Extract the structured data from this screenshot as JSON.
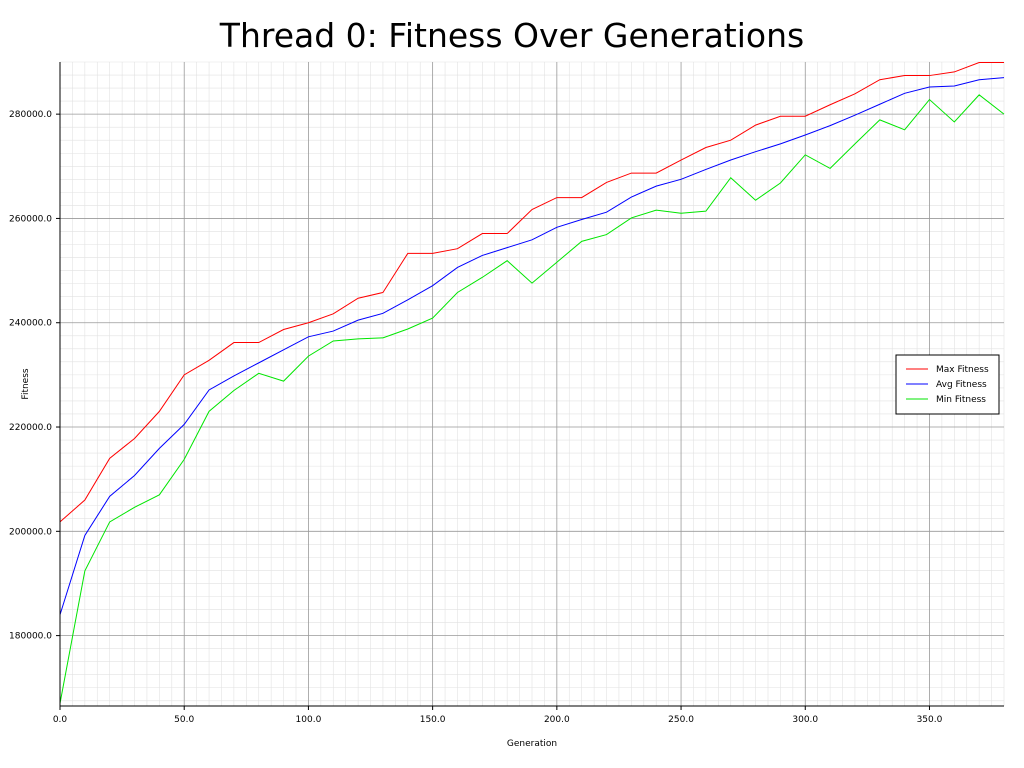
{
  "chart_data": {
    "type": "line",
    "title": "Thread 0: Fitness Over Generations",
    "xlabel": "Generation",
    "ylabel": "Fitness",
    "xlim": [
      0,
      380
    ],
    "ylim": [
      166500,
      290000
    ],
    "x_ticks": [
      0,
      50,
      100,
      150,
      200,
      250,
      300,
      350
    ],
    "x_tick_labels": [
      "0.0",
      "50.0",
      "100.0",
      "150.0",
      "200.0",
      "250.0",
      "300.0",
      "350.0"
    ],
    "y_ticks": [
      180000,
      200000,
      220000,
      240000,
      260000,
      280000
    ],
    "y_tick_labels": [
      "180000.0",
      "200000.0",
      "220000.0",
      "240000.0",
      "260000.0",
      "280000.0"
    ],
    "grid": true,
    "legend_position": "right",
    "x": [
      0,
      10,
      20,
      30,
      40,
      50,
      60,
      70,
      80,
      90,
      100,
      110,
      120,
      130,
      140,
      150,
      160,
      170,
      180,
      190,
      200,
      210,
      220,
      230,
      240,
      250,
      260,
      270,
      280,
      290,
      300,
      310,
      320,
      330,
      340,
      350,
      360,
      370,
      380
    ],
    "series": [
      {
        "name": "Max Fitness",
        "color": "#ff0000",
        "values": [
          201800,
          206000,
          214000,
          217800,
          223000,
          230000,
          232800,
          236200,
          236200,
          238700,
          240000,
          241700,
          244700,
          245800,
          253300,
          253300,
          254200,
          257100,
          257100,
          261700,
          264000,
          264000,
          266900,
          268700,
          268700,
          271200,
          273600,
          275000,
          277900,
          279600,
          279600,
          281800,
          283900,
          286600,
          287400,
          287400,
          288100,
          289900,
          289900
        ]
      },
      {
        "name": "Avg Fitness",
        "color": "#0000ff",
        "values": [
          184000,
          199200,
          206700,
          210700,
          215900,
          220500,
          227100,
          229800,
          232300,
          234800,
          237300,
          238400,
          240500,
          241800,
          244400,
          247100,
          250600,
          252900,
          254400,
          255900,
          258300,
          259800,
          261200,
          264100,
          266200,
          267500,
          269400,
          271200,
          272800,
          274300,
          276000,
          277800,
          279800,
          281900,
          284000,
          285200,
          285400,
          286600,
          287000
        ]
      },
      {
        "name": "Min Fitness",
        "color": "#00e600",
        "values": [
          167000,
          192400,
          201800,
          204600,
          207000,
          213800,
          223000,
          227000,
          230300,
          228800,
          233600,
          236500,
          236900,
          237100,
          238800,
          240900,
          245800,
          248700,
          251900,
          247600,
          251600,
          255600,
          256900,
          260100,
          261600,
          261000,
          261400,
          267800,
          263500,
          266800,
          272200,
          269600,
          274300,
          278900,
          277000,
          282800,
          278500,
          283700,
          280000
        ]
      }
    ]
  }
}
